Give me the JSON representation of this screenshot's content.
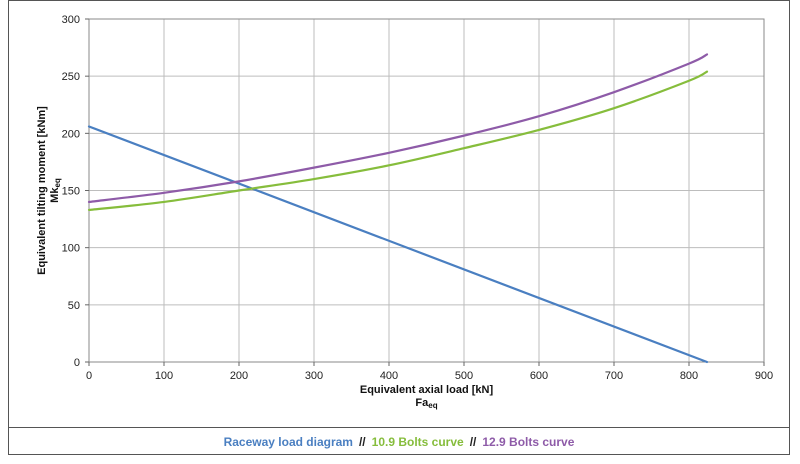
{
  "chart_data": {
    "type": "line",
    "xlabel": "Equivalent axial load [kN]",
    "xlabel_sub": "Fa",
    "xlabel_sub_index": "eq",
    "ylabel": "Equivalent tilting moment [kNm]",
    "ylabel_sub": "Mk",
    "ylabel_sub_index": "eq",
    "xlim": [
      0,
      900
    ],
    "ylim": [
      0,
      300
    ],
    "xticks": [
      0,
      100,
      200,
      300,
      400,
      500,
      600,
      700,
      800,
      900
    ],
    "yticks": [
      0,
      50,
      100,
      150,
      200,
      250,
      300
    ],
    "grid": true,
    "legend_placement": "bottom",
    "series": [
      {
        "name": "Raceway load diagram",
        "color": "#4a7fc1",
        "x": [
          0,
          824
        ],
        "y": [
          206,
          0
        ]
      },
      {
        "name": "10.9 Bolts curve",
        "color": "#86bd3c",
        "x": [
          0,
          100,
          200,
          300,
          400,
          500,
          600,
          700,
          800,
          824
        ],
        "y": [
          133,
          140,
          150,
          160,
          172,
          187,
          203,
          222,
          246,
          254
        ]
      },
      {
        "name": "12.9 Bolts curve",
        "color": "#8e5ba8",
        "x": [
          0,
          100,
          200,
          300,
          400,
          500,
          600,
          700,
          800,
          824
        ],
        "y": [
          140,
          148,
          158,
          170,
          183,
          198,
          215,
          236,
          261,
          269
        ]
      }
    ]
  },
  "legend": {
    "separator": "//"
  }
}
